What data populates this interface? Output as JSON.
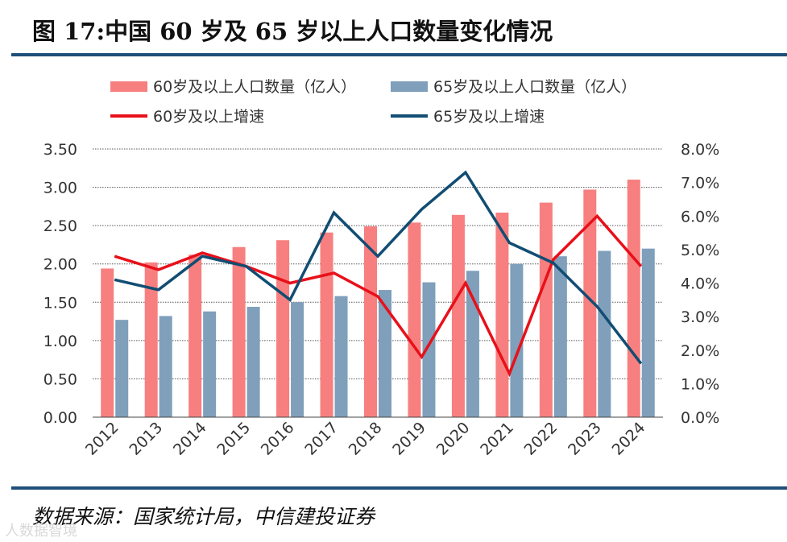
{
  "title": "图 17:中国 60 岁及 65 岁以上人口数量变化情况",
  "source": "数据来源：国家统计局，中信建投证券",
  "watermark": "人数据智境",
  "chart_data": {
    "type": "bar+line",
    "categories": [
      "2012",
      "2013",
      "2014",
      "2015",
      "2016",
      "2017",
      "2018",
      "2019",
      "2020",
      "2021",
      "2022",
      "2023",
      "2024"
    ],
    "bar_series": [
      {
        "name": "60岁及以上人口数量（亿人）",
        "color": "#f77f7f",
        "values": [
          1.94,
          2.02,
          2.12,
          2.22,
          2.31,
          2.41,
          2.49,
          2.54,
          2.64,
          2.67,
          2.8,
          2.97,
          3.1
        ]
      },
      {
        "name": "65岁及以上人口数量（亿人）",
        "color": "#7f9fbb",
        "values": [
          1.27,
          1.32,
          1.38,
          1.44,
          1.5,
          1.58,
          1.66,
          1.76,
          1.91,
          2.0,
          2.1,
          2.17,
          2.2
        ]
      }
    ],
    "line_series": [
      {
        "name": "60岁及以上增速",
        "color": "#e8101a",
        "values": [
          4.8,
          4.4,
          4.9,
          4.5,
          4.0,
          4.3,
          3.6,
          1.8,
          4.0,
          1.3,
          4.7,
          6.0,
          4.5
        ]
      },
      {
        "name": "65岁及以上增速",
        "color": "#114d73",
        "values": [
          4.1,
          3.8,
          4.8,
          4.5,
          3.5,
          6.1,
          4.8,
          6.2,
          7.3,
          5.2,
          4.6,
          3.3,
          1.6
        ]
      }
    ],
    "y_left": {
      "min": 0,
      "max": 3.5,
      "ticks": [
        "0.00",
        "0.50",
        "1.00",
        "1.50",
        "2.00",
        "2.50",
        "3.00",
        "3.50"
      ]
    },
    "y_right": {
      "min": 0,
      "max": 8,
      "ticks": [
        "0.0%",
        "1.0%",
        "2.0%",
        "3.0%",
        "4.0%",
        "5.0%",
        "6.0%",
        "7.0%",
        "8.0%"
      ]
    },
    "grid": true,
    "legend_position": "top"
  }
}
